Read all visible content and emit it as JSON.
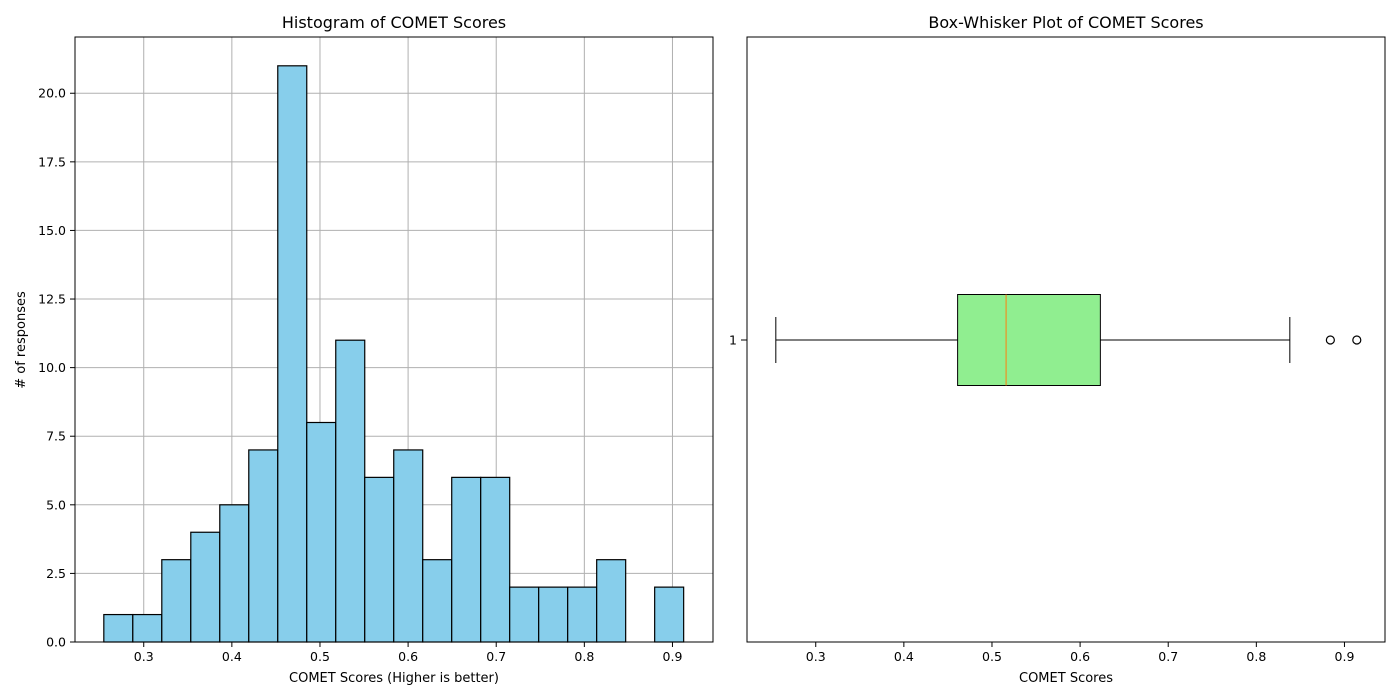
{
  "chart_data": [
    {
      "type": "bar",
      "subtype": "histogram",
      "title": "Histogram of COMET Scores",
      "xlabel": "COMET Scores (Higher is better)",
      "ylabel": "# of responses",
      "bin_start": 0.2547,
      "bin_width": 0.0329,
      "counts": [
        1,
        1,
        3,
        4,
        5,
        7,
        21,
        8,
        11,
        6,
        7,
        3,
        6,
        6,
        2,
        2,
        2,
        3,
        0,
        2
      ],
      "xlim": [
        0.222,
        0.946
      ],
      "ylim": [
        0,
        22.05
      ],
      "xticks": [
        "0.3",
        "0.4",
        "0.5",
        "0.6",
        "0.7",
        "0.8",
        "0.9"
      ],
      "xtick_values": [
        0.3,
        0.4,
        0.5,
        0.6,
        0.7,
        0.8,
        0.9
      ],
      "yticks": [
        "0.0",
        "2.5",
        "5.0",
        "7.5",
        "10.0",
        "12.5",
        "15.0",
        "17.5",
        "20.0"
      ],
      "ytick_values": [
        0,
        2.5,
        5,
        7.5,
        10,
        12.5,
        15,
        17.5,
        20
      ],
      "grid": true,
      "colors": {
        "bar_fill": "#87CEEB",
        "bar_edge": "#000000",
        "grid": "#b0b0b0"
      }
    },
    {
      "type": "box",
      "orientation": "horizontal",
      "title": "Box-Whisker Plot of COMET Scores",
      "xlabel": "COMET Scores",
      "ylabel": "",
      "category": "1",
      "whisker_low": 0.2547,
      "q1": 0.461,
      "median": 0.516,
      "q3": 0.623,
      "whisker_high": 0.838,
      "outliers": [
        0.884,
        0.914
      ],
      "xlim": [
        0.222,
        0.946
      ],
      "xticks": [
        "0.3",
        "0.4",
        "0.5",
        "0.6",
        "0.7",
        "0.8",
        "0.9"
      ],
      "xtick_values": [
        0.3,
        0.4,
        0.5,
        0.6,
        0.7,
        0.8,
        0.9
      ],
      "grid": false,
      "colors": {
        "box_fill": "#90EE90",
        "median": "#FF7F0E",
        "edge": "#000000"
      }
    }
  ]
}
